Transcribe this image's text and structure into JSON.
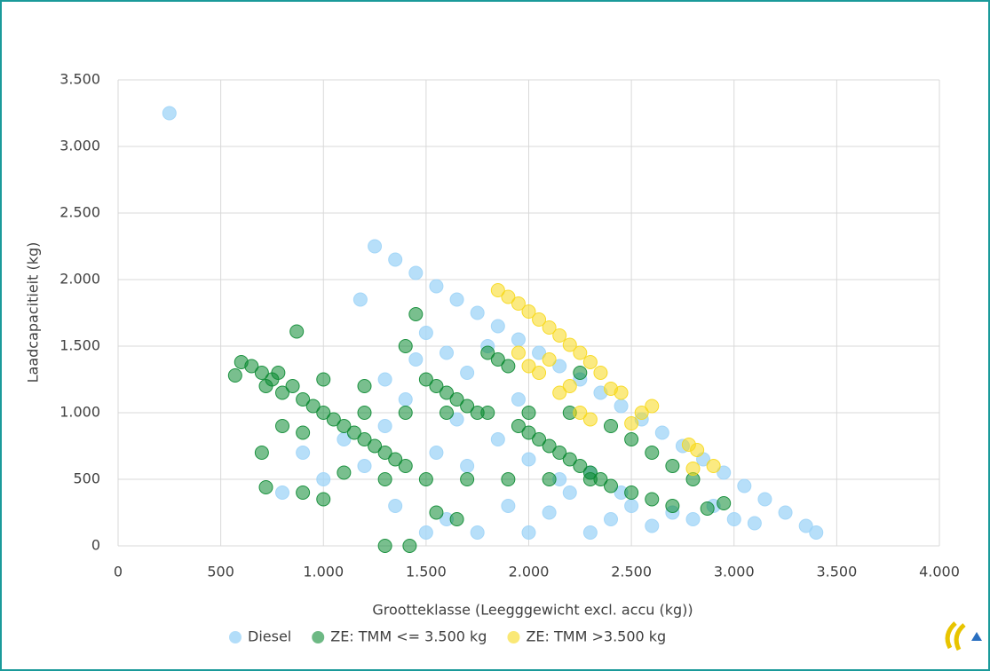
{
  "chart_data": {
    "type": "scatter",
    "xlabel": "Grootteklasse (Leegggewicht excl. accu (kg))",
    "ylabel": "Laadcapacitieit (kg)",
    "xlim": [
      0,
      4000
    ],
    "ylim": [
      0,
      3500
    ],
    "grid": true,
    "legend": "bottom",
    "xticks": [
      0,
      500,
      {
        "value": 1000,
        "label": "1.000"
      },
      {
        "value": 1500,
        "label": "1.500"
      },
      {
        "value": 2000,
        "label": "2.000"
      },
      {
        "value": 2500,
        "label": "2.500"
      },
      {
        "value": 3000,
        "label": "3.000"
      },
      {
        "value": 3500,
        "label": "3.500"
      },
      {
        "value": 4000,
        "label": "4.000"
      }
    ],
    "yticks": [
      0,
      500,
      {
        "value": 1000,
        "label": "1.000"
      },
      {
        "value": 1500,
        "label": "1.500"
      },
      {
        "value": 2000,
        "label": "2.000"
      },
      {
        "value": 2500,
        "label": "2.500"
      },
      {
        "value": 3000,
        "label": "3.000"
      },
      {
        "value": 3500,
        "label": "3.500"
      }
    ],
    "series": [
      {
        "name": "Diesel",
        "color": "#9fd4f7",
        "x": [
          250,
          1180,
          1250,
          1350,
          1450,
          1550,
          1650,
          1750,
          1850,
          1950,
          2050,
          2150,
          2250,
          2350,
          2450,
          2550,
          2650,
          2750,
          2850,
          2950,
          3050,
          3150,
          3250,
          3350,
          3400,
          1500,
          1600,
          1700,
          1800,
          1400,
          1300,
          1200,
          1000,
          800,
          900,
          1100,
          1350,
          1500,
          1600,
          1750,
          1900,
          2000,
          2100,
          2200,
          2300,
          2400,
          2500,
          2600,
          2700,
          2800,
          2900,
          3000,
          3100,
          1550,
          1700,
          1850,
          2000,
          2150,
          2300,
          2450,
          1650,
          1950,
          1300,
          1450
        ],
        "values": [
          3250,
          1850,
          2250,
          2150,
          2050,
          1950,
          1850,
          1750,
          1650,
          1550,
          1450,
          1350,
          1250,
          1150,
          1050,
          950,
          850,
          750,
          650,
          550,
          450,
          350,
          250,
          150,
          100,
          1600,
          1450,
          1300,
          1500,
          1100,
          900,
          600,
          500,
          400,
          700,
          800,
          300,
          100,
          200,
          100,
          300,
          100,
          250,
          400,
          100,
          200,
          300,
          150,
          250,
          200,
          300,
          200,
          170,
          700,
          600,
          800,
          650,
          500,
          550,
          400,
          950,
          1100,
          1250,
          1400
        ]
      },
      {
        "name": "ZE: TMM <= 3.500 kg",
        "color": "#0b8a32",
        "x": [
          570,
          600,
          650,
          700,
          720,
          750,
          780,
          800,
          850,
          870,
          900,
          950,
          1000,
          1050,
          1100,
          1150,
          1200,
          1250,
          1300,
          1350,
          1400,
          1450,
          1400,
          1500,
          1550,
          1600,
          1650,
          1700,
          1750,
          1800,
          1850,
          1900,
          1950,
          2000,
          2050,
          2100,
          2150,
          2200,
          2250,
          2300,
          2350,
          2400,
          2500,
          2600,
          2700,
          2800,
          2870,
          2950,
          2400,
          2500,
          2600,
          2700,
          720,
          900,
          1000,
          1300,
          1420,
          1550,
          1650,
          1100,
          1300,
          1500,
          1700,
          1900,
          2100,
          2300,
          800,
          900,
          1200,
          1400,
          1600,
          1800,
          2000,
          2200,
          700,
          1000,
          1200,
          2250
        ],
        "values": [
          1280,
          1380,
          1350,
          1300,
          1200,
          1250,
          1300,
          1150,
          1200,
          1610,
          1100,
          1050,
          1000,
          950,
          900,
          850,
          800,
          750,
          700,
          650,
          600,
          1740,
          1500,
          1250,
          1200,
          1150,
          1100,
          1050,
          1000,
          1450,
          1400,
          1350,
          900,
          850,
          800,
          750,
          700,
          650,
          600,
          550,
          500,
          450,
          400,
          350,
          300,
          500,
          280,
          320,
          900,
          800,
          700,
          600,
          440,
          400,
          350,
          0,
          0,
          250,
          200,
          550,
          500,
          500,
          500,
          500,
          500,
          500,
          900,
          850,
          1000,
          1000,
          1000,
          1000,
          1000,
          1000,
          700,
          1250,
          1200,
          1300
        ]
      },
      {
        "name": "ZE: TMM >3.500 kg",
        "color": "#f7d81a",
        "x": [
          1850,
          1900,
          1950,
          2000,
          2050,
          2100,
          2150,
          2200,
          2250,
          2300,
          2350,
          2400,
          2450,
          2550,
          2600,
          2780,
          2820,
          2900,
          2000,
          1950,
          2100,
          2200,
          2250,
          2300,
          2500,
          2800,
          2050,
          2150
        ],
        "values": [
          1920,
          1870,
          1820,
          1760,
          1700,
          1640,
          1580,
          1510,
          1450,
          1380,
          1300,
          1180,
          1150,
          1000,
          1050,
          760,
          720,
          600,
          1350,
          1450,
          1400,
          1200,
          1000,
          950,
          920,
          580,
          1300,
          1150
        ]
      }
    ]
  }
}
